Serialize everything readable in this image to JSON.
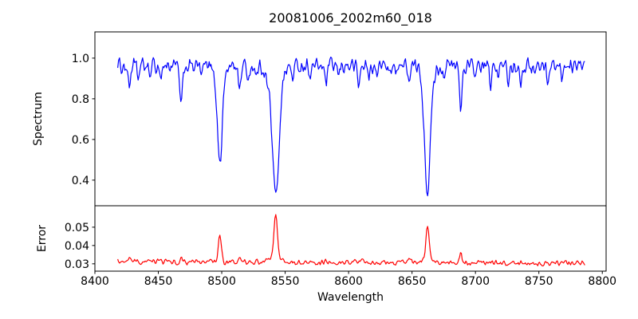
{
  "chart_data": {
    "type": "line",
    "title": "20081006_2002m60_018",
    "xlabel": "Wavelength",
    "background": "#ffffff",
    "axes_color": "#000000",
    "grid": false,
    "legend": "none",
    "xlim": [
      8400,
      8803
    ],
    "xticks": [
      8400,
      8450,
      8500,
      8550,
      8600,
      8650,
      8700,
      8750,
      8800
    ],
    "xtick_labels": [
      "8400",
      "8450",
      "8500",
      "8550",
      "8600",
      "8650",
      "8700",
      "8750",
      "8800"
    ],
    "data_x_range": [
      8418,
      8786
    ],
    "panels": [
      {
        "name": "spectrum",
        "ylabel": "Spectrum",
        "ylim": [
          0.274,
          1.129
        ],
        "yticks": [
          0.4,
          0.6,
          0.8,
          1.0
        ],
        "ytick_labels": [
          "0.4",
          "0.6",
          "0.8",
          "1.0"
        ],
        "line_color": "#0000ff",
        "series": {
          "x_start": 8418,
          "x_end": 8786,
          "step": 0.7,
          "seed": 1234,
          "base_start": 0.962,
          "base_end": 0.962,
          "noise_amp": 0.045,
          "features": [
            {
              "c": 8427.0,
              "a": -0.1,
              "w": 1.0
            },
            {
              "c": 8434.0,
              "a": -0.065,
              "w": 0.8
            },
            {
              "c": 8443.0,
              "a": -0.05,
              "w": 0.8
            },
            {
              "c": 8452.0,
              "a": -0.055,
              "w": 0.8
            },
            {
              "c": 8468.0,
              "a": -0.2,
              "w": 1.1
            },
            {
              "c": 8484.0,
              "a": -0.05,
              "w": 0.8
            },
            {
              "c": 8498.5,
              "a": -0.44,
              "w": 1.9
            },
            {
              "c": 8498.5,
              "a": -0.035,
              "w": 4.5
            },
            {
              "c": 8514.0,
              "a": -0.11,
              "w": 0.9
            },
            {
              "c": 8521.0,
              "a": -0.07,
              "w": 0.8
            },
            {
              "c": 8527.0,
              "a": -0.06,
              "w": 0.8
            },
            {
              "c": 8536.0,
              "a": -0.06,
              "w": 0.8
            },
            {
              "c": 8542.5,
              "a": -0.59,
              "w": 2.6
            },
            {
              "c": 8542.5,
              "a": -0.05,
              "w": 6.0
            },
            {
              "c": 8556.0,
              "a": -0.055,
              "w": 0.8
            },
            {
              "c": 8570.0,
              "a": -0.05,
              "w": 0.7
            },
            {
              "c": 8582.0,
              "a": -0.095,
              "w": 0.9
            },
            {
              "c": 8592.0,
              "a": -0.06,
              "w": 0.7
            },
            {
              "c": 8608.0,
              "a": -0.1,
              "w": 0.9
            },
            {
              "c": 8616.0,
              "a": -0.07,
              "w": 0.7
            },
            {
              "c": 8622.0,
              "a": -0.06,
              "w": 0.7
            },
            {
              "c": 8634.0,
              "a": -0.05,
              "w": 0.7
            },
            {
              "c": 8648.0,
              "a": -0.08,
              "w": 0.8
            },
            {
              "c": 8662.2,
              "a": -0.565,
              "w": 2.3
            },
            {
              "c": 8662.2,
              "a": -0.045,
              "w": 5.0
            },
            {
              "c": 8675.0,
              "a": -0.05,
              "w": 0.7
            },
            {
              "c": 8688.5,
              "a": -0.21,
              "w": 1.0
            },
            {
              "c": 8699.0,
              "a": -0.06,
              "w": 0.7
            },
            {
              "c": 8712.0,
              "a": -0.11,
              "w": 0.9
            },
            {
              "c": 8718.0,
              "a": -0.06,
              "w": 0.7
            },
            {
              "c": 8726.0,
              "a": -0.085,
              "w": 0.8
            },
            {
              "c": 8736.0,
              "a": -0.07,
              "w": 0.8
            },
            {
              "c": 8747.0,
              "a": -0.05,
              "w": 0.7
            },
            {
              "c": 8757.0,
              "a": -0.075,
              "w": 0.8
            },
            {
              "c": 8768.0,
              "a": -0.06,
              "w": 0.7
            }
          ]
        }
      },
      {
        "name": "error",
        "ylabel": "Error",
        "ylim": [
          0.026,
          0.0617
        ],
        "yticks": [
          0.03,
          0.04,
          0.05
        ],
        "ytick_labels": [
          "0.03",
          "0.04",
          "0.05"
        ],
        "line_color": "#ff0000",
        "series": {
          "x_start": 8418,
          "x_end": 8786,
          "step": 0.7,
          "seed": 987,
          "base_start": 0.0312,
          "base_end": 0.0303,
          "noise_amp": 0.0017,
          "features": [
            {
              "c": 8427.0,
              "a": 0.0012,
              "w": 0.8
            },
            {
              "c": 8468.0,
              "a": 0.0018,
              "w": 0.8
            },
            {
              "c": 8498.5,
              "a": 0.0152,
              "w": 1.1
            },
            {
              "c": 8514.0,
              "a": 0.001,
              "w": 0.8
            },
            {
              "c": 8542.5,
              "a": 0.0238,
              "w": 1.3
            },
            {
              "c": 8542.5,
              "a": 0.0035,
              "w": 4.0
            },
            {
              "c": 8582.0,
              "a": 0.0012,
              "w": 0.8
            },
            {
              "c": 8611.0,
              "a": 0.0022,
              "w": 0.8
            },
            {
              "c": 8648.0,
              "a": 0.0028,
              "w": 0.8
            },
            {
              "c": 8662.2,
              "a": 0.017,
              "w": 1.2
            },
            {
              "c": 8662.2,
              "a": 0.0028,
              "w": 3.5
            },
            {
              "c": 8688.5,
              "a": 0.0056,
              "w": 0.9
            },
            {
              "c": 8712.0,
              "a": 0.001,
              "w": 0.8
            },
            {
              "c": 8757.0,
              "a": 0.0012,
              "w": 0.8
            }
          ]
        }
      }
    ]
  }
}
